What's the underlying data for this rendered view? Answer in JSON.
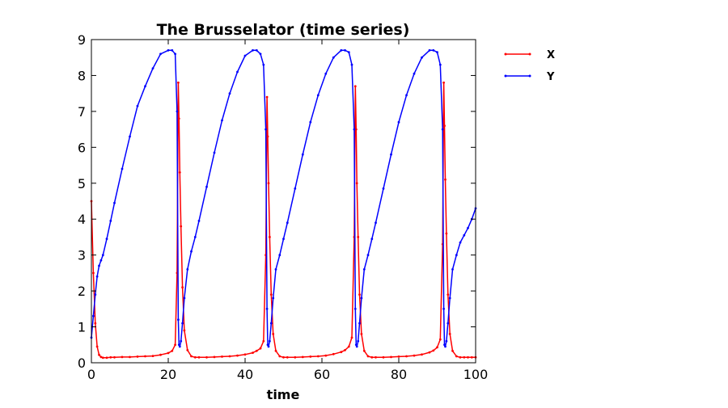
{
  "chart_data": {
    "type": "line",
    "title": "The Brusselator (time series)",
    "xlabel": "time",
    "ylabel": "",
    "xlim": [
      0,
      100
    ],
    "ylim": [
      0,
      9
    ],
    "xticks": [
      0,
      20,
      40,
      60,
      80,
      100
    ],
    "yticks": [
      0,
      1,
      2,
      3,
      4,
      5,
      6,
      7,
      8,
      9
    ],
    "grid": false,
    "legend_position": "outside-right",
    "x": [
      0,
      0.5,
      1,
      1.5,
      2,
      2.5,
      3,
      4,
      5,
      6,
      8,
      10,
      12,
      14,
      16,
      18,
      20,
      21,
      21.8,
      22.3,
      22.6,
      22.8,
      23,
      23.3,
      23.7,
      24.2,
      25,
      26,
      27,
      28,
      30,
      32,
      34,
      36,
      38,
      40,
      42,
      43,
      44,
      44.8,
      45.4,
      45.7,
      45.9,
      46.1,
      46.4,
      46.8,
      47.3,
      48,
      49,
      50,
      51,
      53,
      55,
      57,
      59,
      61,
      63,
      65,
      66,
      67,
      67.8,
      68.4,
      68.7,
      68.9,
      69.1,
      69.4,
      69.8,
      70.3,
      71,
      72,
      73,
      74,
      76,
      78,
      80,
      82,
      84,
      86,
      88,
      89,
      90,
      90.8,
      91.4,
      91.7,
      91.9,
      92.1,
      92.4,
      92.8,
      93.3,
      94,
      95,
      96,
      97,
      98,
      99,
      100
    ],
    "series": [
      {
        "name": "X",
        "color": "#ff0000",
        "values": [
          4.5,
          2.5,
          1.1,
          0.45,
          0.22,
          0.16,
          0.14,
          0.14,
          0.15,
          0.15,
          0.16,
          0.16,
          0.17,
          0.18,
          0.19,
          0.22,
          0.27,
          0.33,
          0.5,
          2.5,
          7.8,
          6.8,
          5.3,
          3.8,
          2.1,
          0.9,
          0.35,
          0.18,
          0.15,
          0.15,
          0.15,
          0.16,
          0.17,
          0.18,
          0.2,
          0.23,
          0.28,
          0.33,
          0.4,
          0.6,
          3.0,
          7.4,
          6.3,
          5.0,
          3.5,
          1.9,
          0.8,
          0.33,
          0.18,
          0.15,
          0.15,
          0.15,
          0.16,
          0.17,
          0.18,
          0.2,
          0.24,
          0.3,
          0.35,
          0.45,
          0.7,
          3.5,
          7.7,
          6.5,
          5.0,
          3.5,
          1.9,
          0.8,
          0.33,
          0.18,
          0.15,
          0.15,
          0.15,
          0.16,
          0.17,
          0.18,
          0.2,
          0.23,
          0.29,
          0.34,
          0.43,
          0.65,
          3.3,
          7.8,
          6.6,
          5.1,
          3.6,
          1.9,
          0.8,
          0.33,
          0.18,
          0.15,
          0.15,
          0.15,
          0.15,
          0.15
        ]
      },
      {
        "name": "Y",
        "color": "#0000ff",
        "values": [
          0.7,
          1.3,
          1.9,
          2.4,
          2.7,
          2.85,
          3.0,
          3.45,
          3.95,
          4.45,
          5.4,
          6.3,
          7.15,
          7.7,
          8.2,
          8.6,
          8.7,
          8.7,
          8.6,
          7.0,
          1.2,
          0.5,
          0.45,
          0.6,
          1.1,
          1.8,
          2.6,
          3.1,
          3.5,
          3.95,
          4.9,
          5.85,
          6.75,
          7.5,
          8.1,
          8.55,
          8.7,
          8.7,
          8.6,
          8.3,
          6.5,
          1.5,
          0.5,
          0.45,
          0.6,
          1.1,
          1.8,
          2.6,
          3.0,
          3.45,
          3.9,
          4.85,
          5.8,
          6.7,
          7.45,
          8.05,
          8.5,
          8.7,
          8.7,
          8.65,
          8.3,
          6.5,
          1.5,
          0.5,
          0.45,
          0.6,
          1.1,
          1.8,
          2.6,
          3.0,
          3.45,
          3.9,
          4.85,
          5.8,
          6.7,
          7.45,
          8.05,
          8.5,
          8.7,
          8.7,
          8.65,
          8.3,
          6.5,
          1.5,
          0.5,
          0.45,
          0.6,
          1.1,
          1.8,
          2.6,
          3.0,
          3.35,
          3.55,
          3.75,
          4.0,
          4.3
        ]
      }
    ]
  }
}
